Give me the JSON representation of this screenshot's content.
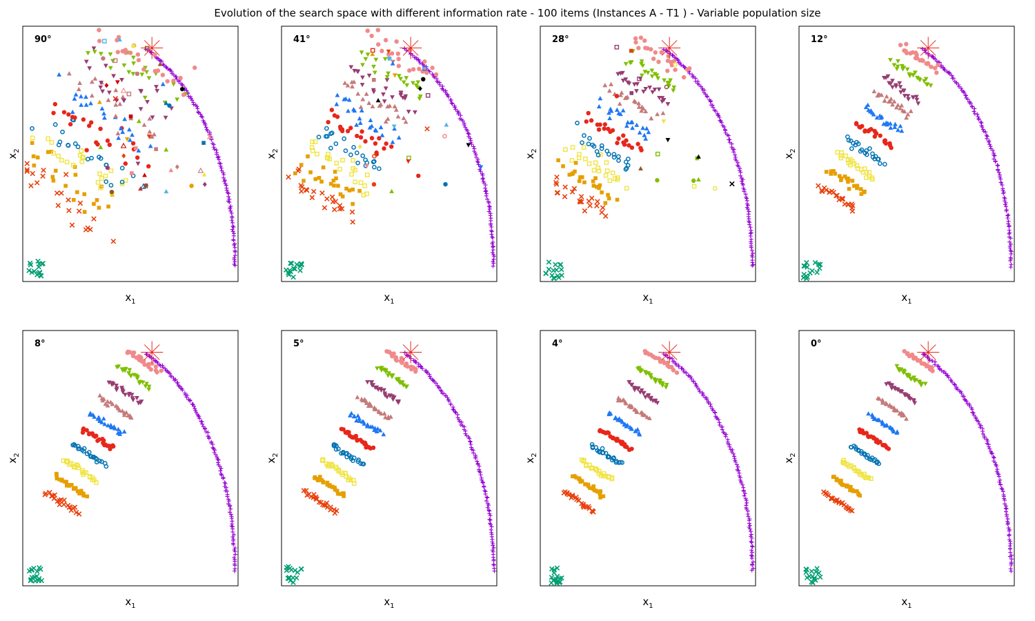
{
  "title": "Evolution of the search space with different information rate - 100 items (Instances A - T1 ) - Variable population size",
  "axes": {
    "xlabel_base": "x",
    "xlabel_sub": "1",
    "ylabel_base": "x",
    "ylabel_sub": "2",
    "xlim": [
      0,
      1
    ],
    "ylim": [
      0,
      1
    ],
    "ticks": "none"
  },
  "colors": {
    "pareto": "#9400d3",
    "anchor": "#009e73",
    "star": "#e8261a",
    "generations": [
      "#e8400c",
      "#e69f00",
      "#f0e442",
      "#0072b2",
      "#e8261a",
      "#1f77f4",
      "#c57a7a",
      "#973d73",
      "#7fbf00",
      "#f08a8a",
      "#8b5a2b",
      "#000000",
      "#56b4e9",
      "#cc0000"
    ]
  },
  "chart_data": [
    {
      "type": "scatter",
      "angle_label": "90°",
      "spread": 1.0
    },
    {
      "type": "scatter",
      "angle_label": "41°",
      "spread": 0.62
    },
    {
      "type": "scatter",
      "angle_label": "28°",
      "spread": 0.42
    },
    {
      "type": "scatter",
      "angle_label": "12°",
      "spread": 0.15
    },
    {
      "type": "scatter",
      "angle_label": "8°",
      "spread": 0.08
    },
    {
      "type": "scatter",
      "angle_label": "5°",
      "spread": 0.05
    },
    {
      "type": "scatter",
      "angle_label": "4°",
      "spread": 0.04
    },
    {
      "type": "scatter",
      "angle_label": "0°",
      "spread": 0.0
    }
  ]
}
